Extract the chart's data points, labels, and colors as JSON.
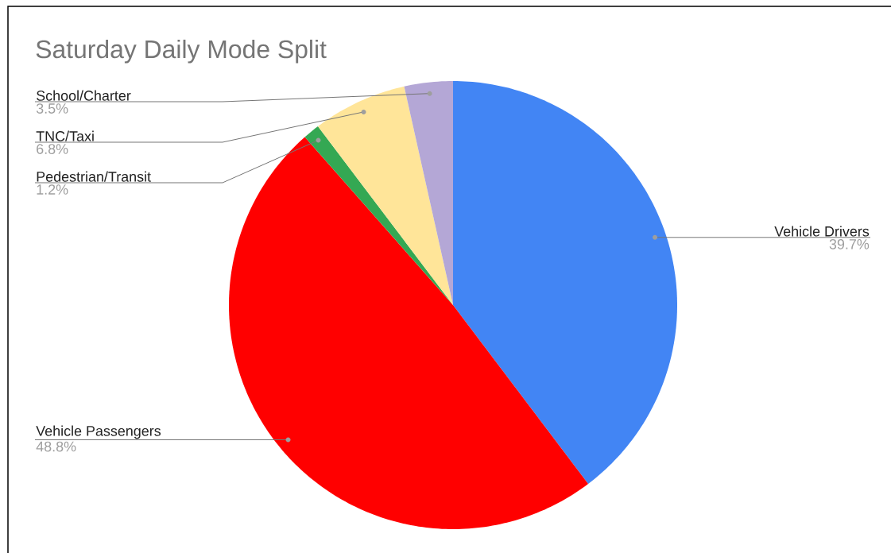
{
  "chart_data": {
    "type": "pie",
    "title": "Saturday Daily Mode Split",
    "categories": [
      "Vehicle Drivers",
      "Vehicle Passengers",
      "Pedestrian/Transit",
      "TNC/Taxi",
      "School/Charter"
    ],
    "values": [
      39.7,
      48.8,
      1.2,
      6.8,
      3.5
    ],
    "colors": [
      "#4285f4",
      "#ff0000",
      "#34a853",
      "#ffe599",
      "#b4a7d6"
    ],
    "value_labels": [
      "39.7%",
      "48.8%",
      "1.2%",
      "6.8%",
      "3.5%"
    ]
  }
}
